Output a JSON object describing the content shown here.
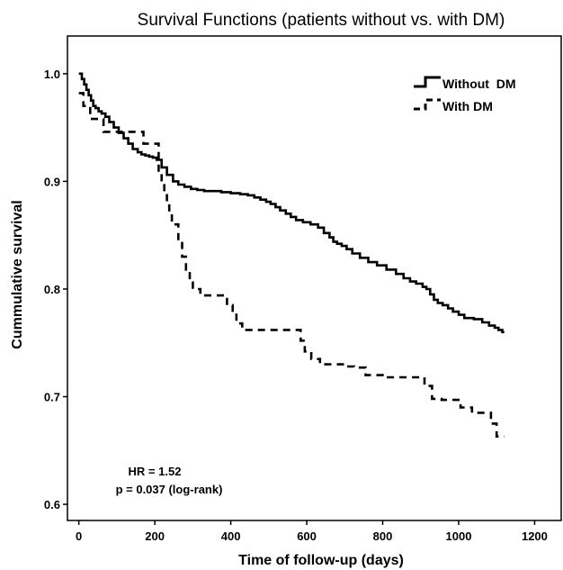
{
  "chart_data": {
    "type": "line",
    "title": "Survival Functions (patients without vs. with DM)",
    "xlabel": "Time of follow-up (days)",
    "ylabel": "Cummulative survival",
    "xlim": [
      -30,
      1270
    ],
    "ylim": [
      0.585,
      1.035
    ],
    "xticks": [
      0,
      200,
      400,
      600,
      800,
      1000,
      1200
    ],
    "xtick_labels": [
      "0",
      "200",
      "400",
      "600",
      "800",
      "1000",
      "1200"
    ],
    "yticks": [
      0.6,
      0.7,
      0.8,
      0.9,
      1.0
    ],
    "ytick_labels": [
      "0.6",
      "0.7",
      "0.8",
      "0.9",
      "1.0"
    ],
    "grid": false,
    "legend": "top-right",
    "series": [
      {
        "name": "Without  DM",
        "style": "solid",
        "x": [
          0,
          8,
          14,
          20,
          26,
          32,
          38,
          44,
          52,
          60,
          70,
          80,
          92,
          105,
          118,
          130,
          142,
          155,
          165,
          175,
          185,
          195,
          205,
          218,
          232,
          248,
          262,
          278,
          295,
          312,
          330,
          350,
          375,
          400,
          425,
          445,
          462,
          478,
          493,
          505,
          518,
          530,
          545,
          558,
          572,
          590,
          610,
          630,
          645,
          660,
          670,
          680,
          692,
          705,
          720,
          740,
          762,
          785,
          810,
          835,
          855,
          872,
          888,
          905,
          915,
          925,
          935,
          945,
          958,
          972,
          985,
          1000,
          1015,
          1040,
          1062,
          1080,
          1095,
          1105,
          1115,
          1120
        ],
        "y": [
          1.0,
          0.995,
          0.99,
          0.985,
          0.98,
          0.975,
          0.97,
          0.968,
          0.965,
          0.963,
          0.96,
          0.955,
          0.95,
          0.945,
          0.94,
          0.935,
          0.93,
          0.927,
          0.925,
          0.924,
          0.923,
          0.922,
          0.92,
          0.913,
          0.906,
          0.9,
          0.897,
          0.895,
          0.893,
          0.892,
          0.891,
          0.891,
          0.89,
          0.889,
          0.888,
          0.887,
          0.885,
          0.883,
          0.881,
          0.879,
          0.876,
          0.873,
          0.87,
          0.867,
          0.864,
          0.862,
          0.86,
          0.857,
          0.852,
          0.848,
          0.844,
          0.842,
          0.84,
          0.837,
          0.833,
          0.829,
          0.825,
          0.822,
          0.818,
          0.814,
          0.81,
          0.807,
          0.805,
          0.802,
          0.8,
          0.795,
          0.79,
          0.787,
          0.785,
          0.782,
          0.779,
          0.776,
          0.773,
          0.772,
          0.769,
          0.766,
          0.764,
          0.762,
          0.76,
          0.76
        ]
      },
      {
        "name": "With DM",
        "style": "dashed",
        "x": [
          0,
          12,
          30,
          65,
          100,
          170,
          210,
          218,
          225,
          232,
          238,
          245,
          262,
          272,
          282,
          292,
          300,
          310,
          320,
          342,
          370,
          390,
          405,
          415,
          430,
          458,
          490,
          520,
          550,
          572,
          584,
          595,
          612,
          635,
          665,
          700,
          725,
          755,
          800,
          850,
          895,
          910,
          930,
          955,
          975,
          1005,
          1035,
          1055,
          1075,
          1085,
          1100,
          1120
        ],
        "y": [
          0.982,
          0.97,
          0.958,
          0.946,
          0.946,
          0.935,
          0.91,
          0.9,
          0.89,
          0.88,
          0.87,
          0.86,
          0.845,
          0.83,
          0.818,
          0.806,
          0.8,
          0.8,
          0.794,
          0.794,
          0.794,
          0.785,
          0.776,
          0.768,
          0.762,
          0.762,
          0.762,
          0.762,
          0.762,
          0.762,
          0.752,
          0.742,
          0.735,
          0.73,
          0.73,
          0.728,
          0.727,
          0.72,
          0.718,
          0.718,
          0.718,
          0.71,
          0.698,
          0.697,
          0.697,
          0.69,
          0.685,
          0.685,
          0.685,
          0.675,
          0.663,
          0.663
        ]
      }
    ],
    "annotations": [
      "HR = 1.52",
      "p = 0.037 (log-rank)"
    ]
  },
  "colors": {
    "line": "#000000",
    "background": "#ffffff"
  }
}
